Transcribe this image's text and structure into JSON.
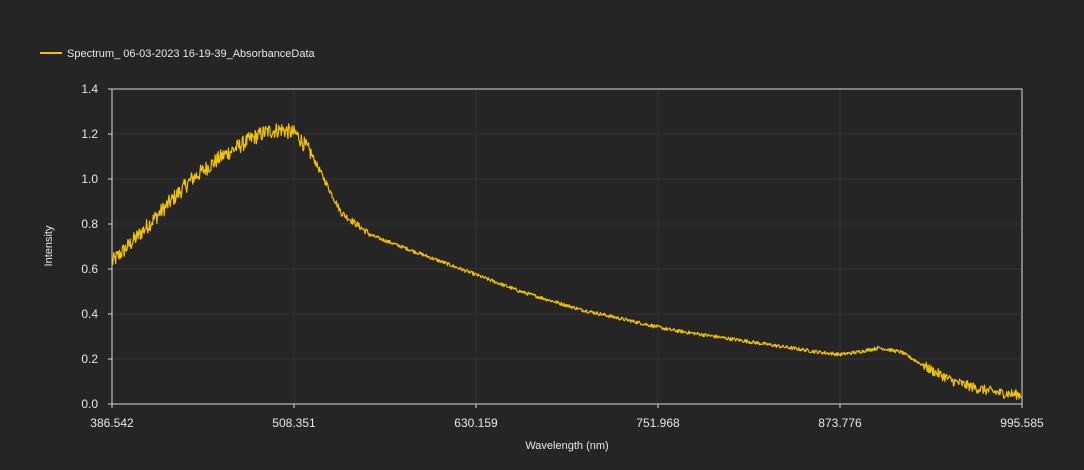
{
  "chart_data": {
    "type": "line",
    "title": "",
    "xlabel": "Wavelength (nm)",
    "ylabel": "Intensity",
    "xlim": [
      386.542,
      995.585
    ],
    "ylim": [
      0,
      1.4
    ],
    "x_ticks": [
      "386.542",
      "508.351",
      "630.159",
      "751.968",
      "873.776",
      "995.585"
    ],
    "y_ticks": [
      "0.0",
      "0.2",
      "0.4",
      "0.6",
      "0.8",
      "1.0",
      "1.2",
      "1.4"
    ],
    "grid": true,
    "legend_position": "top-left",
    "series": [
      {
        "name": "Spectrum_ 06-03-2023 16-19-39_AbsorbanceData",
        "color": "#f2c200",
        "x": [
          386.5,
          400,
          420,
          440,
          460,
          480,
          490,
          500,
          510,
          520,
          530,
          540,
          560,
          580,
          600,
          620,
          640,
          660,
          680,
          700,
          720,
          740,
          760,
          780,
          800,
          820,
          840,
          860,
          873.8,
          885,
          900,
          915,
          925,
          935,
          950,
          965,
          980,
          995.6
        ],
        "y": [
          0.63,
          0.72,
          0.86,
          1.0,
          1.1,
          1.18,
          1.21,
          1.22,
          1.2,
          1.11,
          0.98,
          0.85,
          0.75,
          0.7,
          0.65,
          0.6,
          0.55,
          0.5,
          0.46,
          0.42,
          0.39,
          0.36,
          0.33,
          0.31,
          0.29,
          0.27,
          0.25,
          0.23,
          0.22,
          0.23,
          0.25,
          0.23,
          0.19,
          0.15,
          0.1,
          0.07,
          0.05,
          0.04
        ]
      }
    ]
  }
}
